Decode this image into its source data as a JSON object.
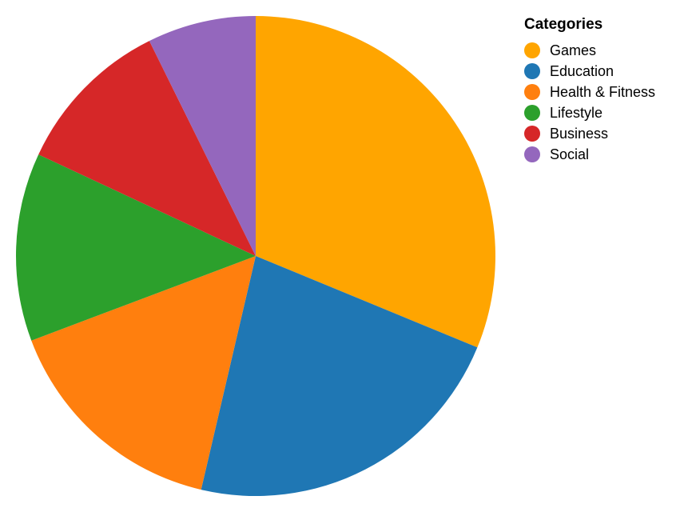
{
  "chart_data": {
    "type": "pie",
    "title": "",
    "legend": {
      "title": "Categories",
      "placement": "top-right"
    },
    "start_angle": "12 o'clock",
    "direction": "clockwise",
    "slices": [
      {
        "label": "Games",
        "value": 32,
        "color": "#ffa500"
      },
      {
        "label": "Education",
        "value": 23,
        "color": "#1f77b4"
      },
      {
        "label": "Health & Fitness",
        "value": 16,
        "color": "#ff7f0e"
      },
      {
        "label": "Lifestyle",
        "value": 13,
        "color": "#2ca02c"
      },
      {
        "label": "Business",
        "value": 11,
        "color": "#d62728"
      },
      {
        "label": "Social",
        "value": 7.5,
        "color": "#9467bd"
      }
    ],
    "units": "%"
  }
}
